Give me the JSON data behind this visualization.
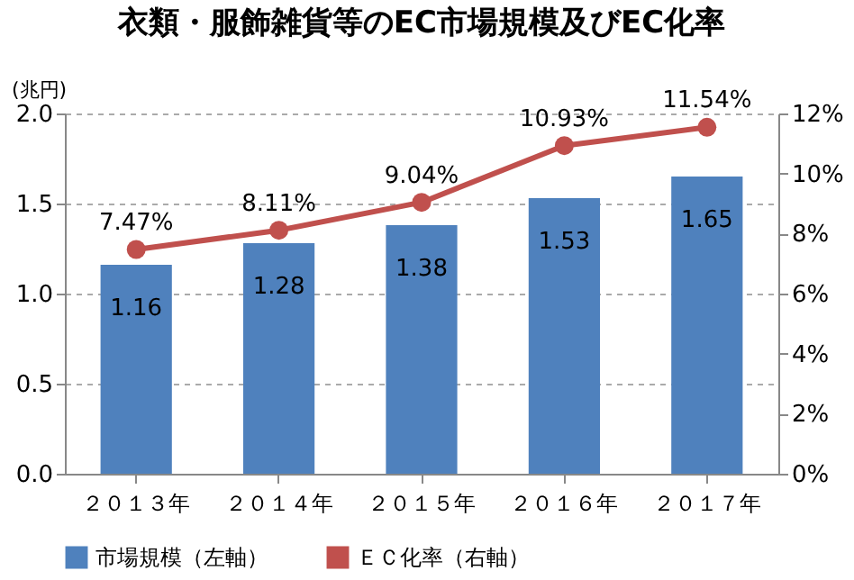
{
  "chart_data": {
    "type": "bar",
    "title": "衣類・服飾雑貨等のEC市場規模及びEC化率",
    "ylabel": "(兆円)",
    "categories": [
      "２０１３年",
      "２０１４年",
      "２０１５年",
      "２０１６年",
      "２０１７年"
    ],
    "series": [
      {
        "name": "市場規模（左軸）",
        "color": "#4f81bd",
        "values": [
          1.16,
          1.28,
          1.38,
          1.53,
          1.65
        ],
        "value_labels": [
          "1.16",
          "1.28",
          "1.38",
          "1.53",
          "1.65"
        ]
      },
      {
        "name": "ＥＣ化率（右軸）",
        "type": "line",
        "axis": "y2",
        "color": "#c0504d",
        "values": [
          7.47,
          8.11,
          9.04,
          10.93,
          11.54
        ],
        "value_labels": [
          "7.47%",
          "8.11%",
          "9.04%",
          "10.93%",
          "11.54%"
        ]
      }
    ],
    "ylim": [
      0,
      2
    ],
    "yticks": [
      {
        "value": 0,
        "label": "0.0"
      },
      0.5,
      {
        "value": 1,
        "label": "1.0"
      },
      1.5,
      {
        "value": 2,
        "label": "2.0"
      }
    ],
    "y2lim": [
      0,
      12
    ],
    "y2ticks": [
      {
        "value": 0,
        "label": "0%"
      },
      {
        "value": 2,
        "label": "2%"
      },
      {
        "value": 4,
        "label": "4%"
      },
      {
        "value": 6,
        "label": "6%"
      },
      {
        "value": 8,
        "label": "8%"
      },
      {
        "value": 10,
        "label": "10%"
      },
      {
        "value": 12,
        "label": "12%"
      }
    ],
    "grid": "y",
    "legend": "bottom",
    "marker": "circle",
    "line_style": "solid"
  }
}
